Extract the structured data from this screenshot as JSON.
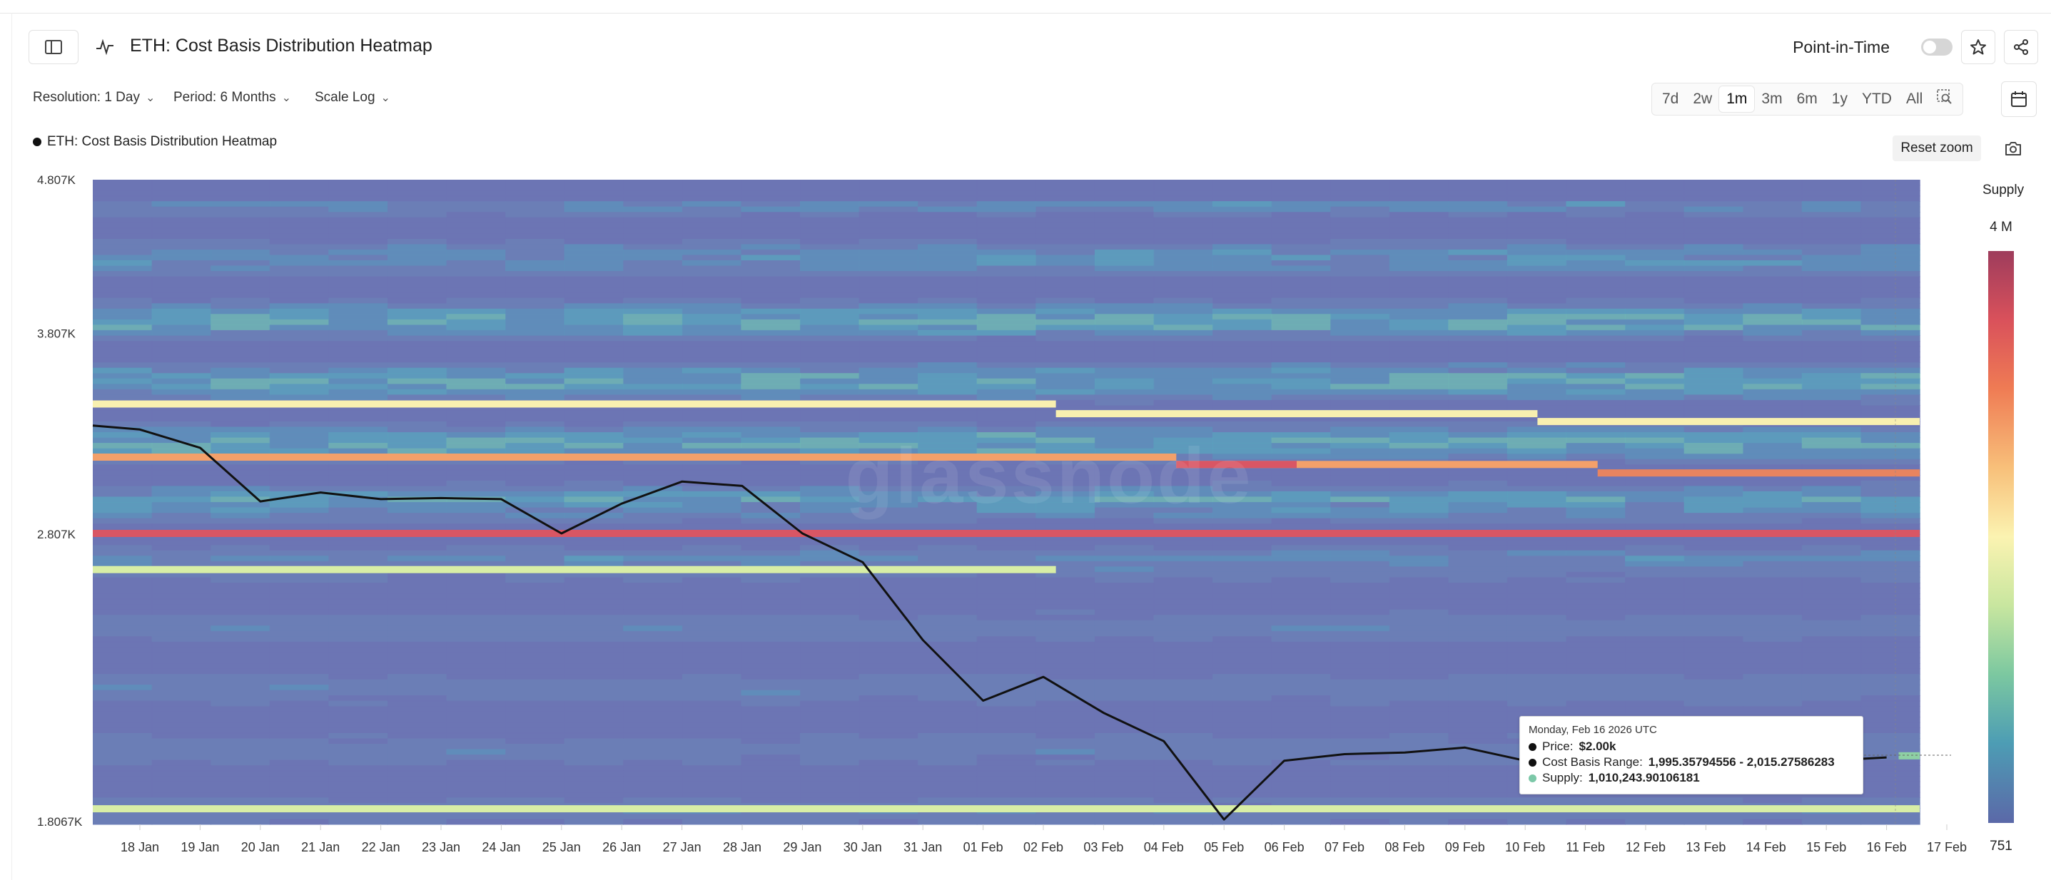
{
  "header": {
    "title": "ETH: Cost Basis Distribution Heatmap",
    "point_in_time_label": "Point-in-Time"
  },
  "controls": {
    "resolution": "Resolution: 1 Day",
    "period": "Period: 6 Months",
    "scale": "Scale Log",
    "ranges": [
      "7d",
      "2w",
      "1m",
      "3m",
      "6m",
      "1y",
      "YTD",
      "All"
    ],
    "active_range": "1m",
    "reset_zoom": "Reset zoom"
  },
  "legend": {
    "series_label": "ETH: Cost Basis Distribution Heatmap"
  },
  "colorbar": {
    "title": "Supply",
    "max_label": "4 M",
    "min_label": "751"
  },
  "watermark": "glassnode",
  "tooltip": {
    "date": "Monday, Feb 16 2026 UTC",
    "price_label": "Price:",
    "price_value": "$2.00k",
    "range_label": "Cost Basis Range:",
    "range_value": "1,995.35794556 - 2,015.27586283",
    "supply_label": "Supply:",
    "supply_value": "1,010,243.90106181"
  },
  "colors": {
    "line": "#111111",
    "heat_low": "#6c75b3",
    "heat_high": "#d9515b",
    "tooltip_supply_dot": "#7cc8a8"
  },
  "icons": [
    "sidebar-toggle-icon",
    "pulse-icon",
    "star-icon",
    "share-icon",
    "calendar-icon",
    "zoom-select-icon",
    "camera-icon"
  ],
  "chart_data": {
    "type": "heatmap",
    "title": "ETH: Cost Basis Distribution Heatmap",
    "y_scale": "log",
    "ylim": [
      1806.7,
      4807
    ],
    "y_ticks": [
      4807,
      3807,
      2807,
      1806.7
    ],
    "y_tick_labels": [
      "4.807K",
      "3.807K",
      "2.807K",
      "1.8067K"
    ],
    "x_ticks": [
      "18 Jan",
      "19 Jan",
      "20 Jan",
      "21 Jan",
      "22 Jan",
      "23 Jan",
      "24 Jan",
      "25 Jan",
      "26 Jan",
      "27 Jan",
      "28 Jan",
      "29 Jan",
      "30 Jan",
      "31 Jan",
      "01 Feb",
      "02 Feb",
      "03 Feb",
      "04 Feb",
      "05 Feb",
      "06 Feb",
      "07 Feb",
      "08 Feb",
      "09 Feb",
      "10 Feb",
      "11 Feb",
      "12 Feb",
      "13 Feb",
      "14 Feb",
      "15 Feb",
      "16 Feb",
      "17 Feb"
    ],
    "price_series": {
      "dates": [
        "17 Jan",
        "18 Jan",
        "19 Jan",
        "20 Jan",
        "21 Jan",
        "22 Jan",
        "23 Jan",
        "24 Jan",
        "25 Jan",
        "26 Jan",
        "27 Jan",
        "28 Jan",
        "29 Jan",
        "30 Jan",
        "31 Jan",
        "01 Feb",
        "02 Feb",
        "03 Feb",
        "04 Feb",
        "05 Feb",
        "06 Feb",
        "07 Feb",
        "08 Feb",
        "09 Feb",
        "10 Feb",
        "11 Feb",
        "12 Feb",
        "13 Feb",
        "14 Feb",
        "15 Feb",
        "16 Feb"
      ],
      "values": [
        3310,
        3290,
        3200,
        2950,
        2990,
        2960,
        2965,
        2960,
        2810,
        2940,
        3040,
        3020,
        2810,
        2690,
        2390,
        2180,
        2260,
        2140,
        2050,
        1820,
        1990,
        2010,
        2015,
        2030,
        1990,
        1960,
        1975,
        2000,
        1980,
        1990,
        2000
      ]
    },
    "bands": [
      {
        "price": 2810,
        "supply": 3900000,
        "from": "17 Jan",
        "to": "17 Feb"
      },
      {
        "price": 3155,
        "supply": 3300000,
        "from": "17 Jan",
        "to": "04 Feb"
      },
      {
        "price": 3120,
        "supply": 3200000,
        "from": "04 Feb",
        "to": "11 Feb"
      },
      {
        "price": 3080,
        "supply": 3400000,
        "from": "11 Feb",
        "to": "17 Feb"
      },
      {
        "price": 3120,
        "supply": 4000000,
        "from": "04 Feb",
        "to": "06 Feb"
      },
      {
        "price": 3420,
        "supply": 2400000,
        "from": "17 Jan",
        "to": "02 Feb"
      },
      {
        "price": 3370,
        "supply": 2400000,
        "from": "02 Feb",
        "to": "10 Feb"
      },
      {
        "price": 3330,
        "supply": 2400000,
        "from": "10 Feb",
        "to": "17 Feb"
      },
      {
        "price": 2660,
        "supply": 2200000,
        "from": "17 Jan",
        "to": "02 Feb"
      },
      {
        "price": 1850,
        "supply": 2000000,
        "from": "17 Jan",
        "to": "17 Feb"
      },
      {
        "price": 2005,
        "supply": 1010244,
        "from": "16 Feb",
        "to": "17 Feb"
      }
    ]
  }
}
